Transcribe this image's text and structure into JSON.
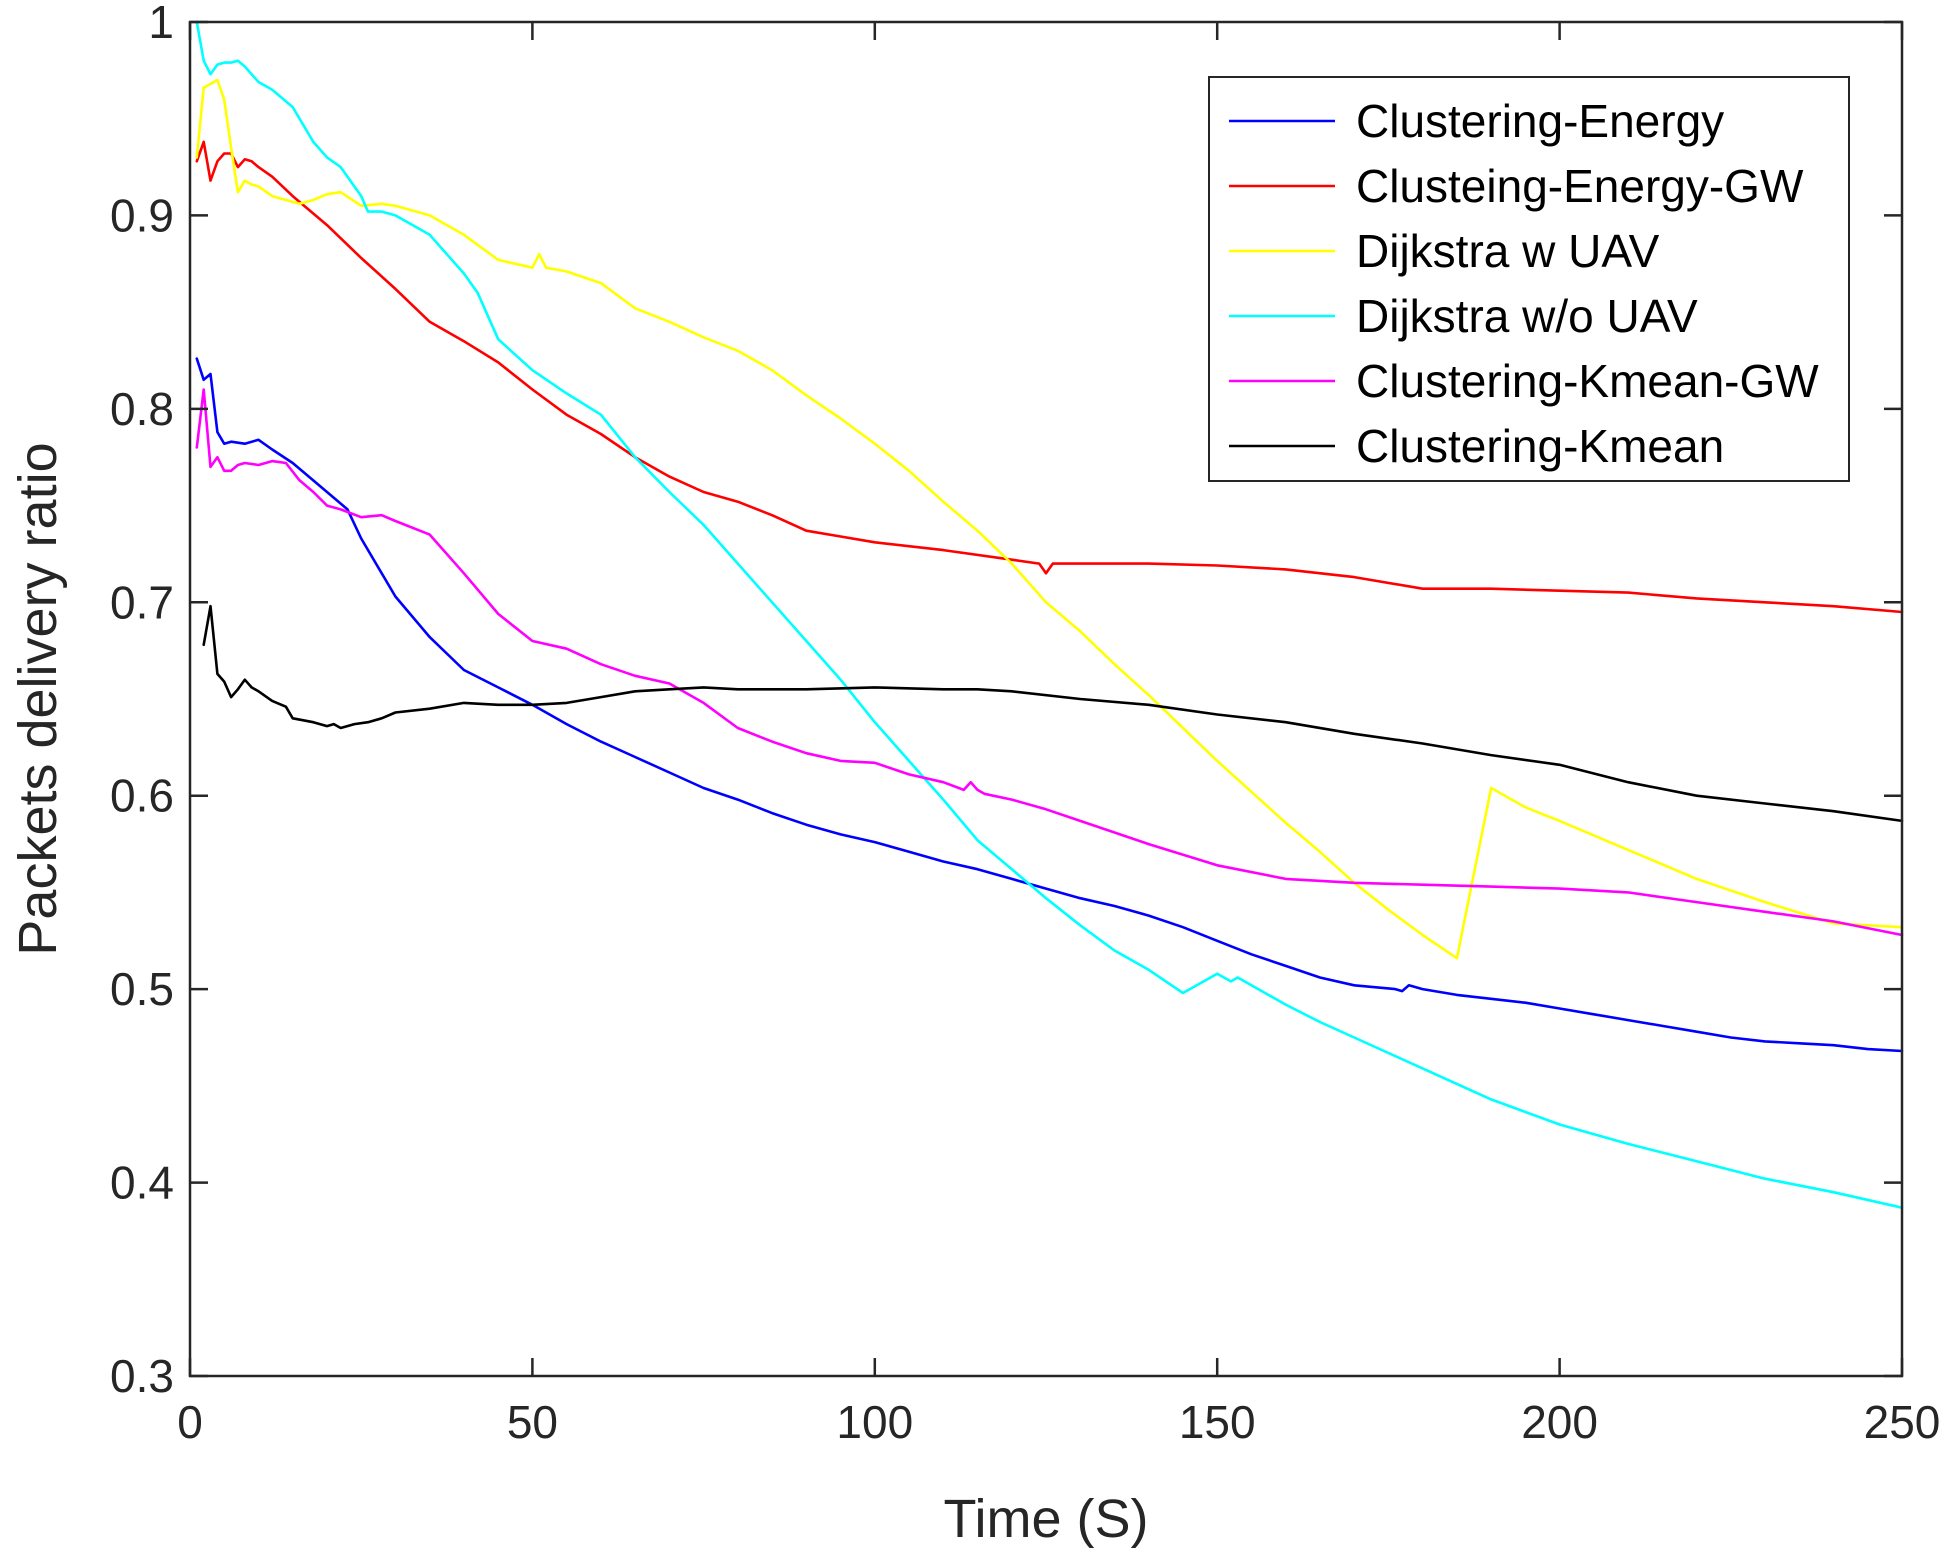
{
  "chart_data": {
    "type": "line",
    "title": "",
    "xlabel": "Time (S)",
    "ylabel": "Packets delivery ratio",
    "xlim": [
      0,
      250
    ],
    "ylim": [
      0.3,
      1
    ],
    "xticks": [
      0,
      50,
      100,
      150,
      200,
      250
    ],
    "yticks": [
      0.3,
      0.4,
      0.5,
      0.6,
      0.7,
      0.8,
      0.9,
      1
    ],
    "xtick_labels": [
      "0",
      "50",
      "100",
      "150",
      "200",
      "250"
    ],
    "ytick_labels": [
      "0.3",
      "0.4",
      "0.5",
      "0.6",
      "0.7",
      "0.8",
      "0.9",
      "1"
    ],
    "grid": false,
    "legend_position": "top-right",
    "series": [
      {
        "name": "Clustering-Energy",
        "color": "#0000ff",
        "x": [
          1,
          2,
          3,
          4,
          5,
          6,
          8,
          10,
          12,
          15,
          20,
          23,
          25,
          30,
          35,
          40,
          45,
          50,
          55,
          60,
          65,
          70,
          75,
          80,
          85,
          90,
          95,
          100,
          105,
          110,
          115,
          120,
          125,
          130,
          135,
          140,
          145,
          150,
          155,
          160,
          165,
          170,
          176,
          177,
          178,
          180,
          185,
          190,
          195,
          200,
          205,
          210,
          215,
          220,
          225,
          230,
          235,
          240,
          245,
          250
        ],
        "y": [
          0.826,
          0.815,
          0.818,
          0.788,
          0.782,
          0.783,
          0.782,
          0.784,
          0.779,
          0.772,
          0.757,
          0.748,
          0.733,
          0.703,
          0.682,
          0.665,
          0.656,
          0.647,
          0.637,
          0.628,
          0.62,
          0.612,
          0.604,
          0.598,
          0.591,
          0.585,
          0.58,
          0.576,
          0.571,
          0.566,
          0.562,
          0.557,
          0.552,
          0.547,
          0.543,
          0.538,
          0.532,
          0.525,
          0.518,
          0.512,
          0.506,
          0.502,
          0.5,
          0.499,
          0.502,
          0.5,
          0.497,
          0.495,
          0.493,
          0.49,
          0.487,
          0.484,
          0.481,
          0.478,
          0.475,
          0.473,
          0.472,
          0.471,
          0.469,
          0.468
        ]
      },
      {
        "name": "Clusteing-Energy-GW",
        "color": "#ff0000",
        "x": [
          1,
          2,
          3,
          4,
          5,
          6,
          7,
          8,
          9,
          10,
          12,
          15,
          20,
          25,
          30,
          35,
          40,
          45,
          50,
          55,
          60,
          65,
          70,
          75,
          80,
          85,
          90,
          95,
          100,
          110,
          120,
          124,
          125,
          126,
          130,
          140,
          150,
          160,
          170,
          180,
          190,
          200,
          210,
          220,
          230,
          240,
          250
        ],
        "y": [
          0.928,
          0.938,
          0.918,
          0.928,
          0.932,
          0.932,
          0.925,
          0.929,
          0.928,
          0.925,
          0.92,
          0.91,
          0.895,
          0.878,
          0.862,
          0.845,
          0.835,
          0.824,
          0.81,
          0.797,
          0.787,
          0.775,
          0.765,
          0.757,
          0.752,
          0.745,
          0.737,
          0.734,
          0.731,
          0.727,
          0.722,
          0.72,
          0.715,
          0.72,
          0.72,
          0.72,
          0.719,
          0.717,
          0.713,
          0.707,
          0.707,
          0.706,
          0.705,
          0.702,
          0.7,
          0.698,
          0.695
        ]
      },
      {
        "name": "Dijkstra w UAV",
        "color": "#ffff00",
        "x": [
          1,
          2,
          3,
          4,
          5,
          6,
          7,
          8,
          9,
          10,
          12,
          14,
          16,
          18,
          20,
          22,
          25,
          28,
          30,
          35,
          40,
          45,
          50,
          51,
          52,
          55,
          60,
          65,
          70,
          75,
          80,
          85,
          90,
          95,
          100,
          105,
          110,
          115,
          120,
          125,
          130,
          135,
          140,
          145,
          150,
          155,
          160,
          165,
          170,
          175,
          180,
          185,
          190,
          195,
          200,
          210,
          220,
          230,
          240,
          250
        ],
        "y": [
          0.93,
          0.966,
          0.968,
          0.97,
          0.96,
          0.935,
          0.912,
          0.918,
          0.916,
          0.915,
          0.91,
          0.908,
          0.906,
          0.908,
          0.911,
          0.912,
          0.905,
          0.906,
          0.905,
          0.9,
          0.89,
          0.877,
          0.873,
          0.88,
          0.873,
          0.871,
          0.865,
          0.852,
          0.845,
          0.837,
          0.83,
          0.82,
          0.807,
          0.795,
          0.782,
          0.768,
          0.752,
          0.737,
          0.72,
          0.7,
          0.685,
          0.668,
          0.652,
          0.635,
          0.618,
          0.602,
          0.586,
          0.571,
          0.555,
          0.541,
          0.528,
          0.516,
          0.604,
          0.594,
          0.587,
          0.572,
          0.557,
          0.545,
          0.534,
          0.532
        ]
      },
      {
        "name": "Dijkstra w/o UAV",
        "color": "#00ffff",
        "x": [
          1,
          2,
          3,
          4,
          5,
          6,
          7,
          8,
          10,
          12,
          15,
          18,
          20,
          22,
          25,
          26,
          27,
          28,
          30,
          35,
          40,
          42,
          45,
          50,
          55,
          60,
          65,
          70,
          75,
          80,
          85,
          90,
          95,
          100,
          105,
          110,
          115,
          120,
          125,
          130,
          135,
          140,
          145,
          150,
          152,
          153,
          155,
          160,
          165,
          170,
          175,
          180,
          190,
          200,
          210,
          220,
          230,
          240,
          250
        ],
        "y": [
          1.0,
          0.98,
          0.973,
          0.978,
          0.979,
          0.979,
          0.98,
          0.977,
          0.969,
          0.965,
          0.956,
          0.938,
          0.93,
          0.925,
          0.91,
          0.902,
          0.902,
          0.902,
          0.9,
          0.89,
          0.87,
          0.86,
          0.836,
          0.82,
          0.808,
          0.797,
          0.775,
          0.757,
          0.74,
          0.72,
          0.7,
          0.68,
          0.66,
          0.638,
          0.618,
          0.598,
          0.577,
          0.562,
          0.547,
          0.533,
          0.52,
          0.51,
          0.498,
          0.508,
          0.504,
          0.506,
          0.502,
          0.492,
          0.483,
          0.475,
          0.467,
          0.459,
          0.443,
          0.43,
          0.42,
          0.411,
          0.402,
          0.395,
          0.387
        ]
      },
      {
        "name": "Clustering-Kmean-GW",
        "color": "#ff00ff",
        "x": [
          1,
          2,
          3,
          4,
          5,
          6,
          7,
          8,
          10,
          12,
          14,
          16,
          18,
          20,
          22,
          25,
          28,
          30,
          35,
          40,
          45,
          50,
          55,
          60,
          65,
          70,
          75,
          80,
          85,
          90,
          95,
          100,
          105,
          110,
          113,
          114,
          115,
          116,
          120,
          125,
          130,
          140,
          150,
          160,
          170,
          180,
          190,
          200,
          210,
          220,
          230,
          240,
          250
        ],
        "y": [
          0.78,
          0.81,
          0.77,
          0.775,
          0.768,
          0.768,
          0.771,
          0.772,
          0.771,
          0.773,
          0.772,
          0.763,
          0.757,
          0.75,
          0.748,
          0.744,
          0.745,
          0.742,
          0.735,
          0.715,
          0.694,
          0.68,
          0.676,
          0.668,
          0.662,
          0.658,
          0.648,
          0.635,
          0.628,
          0.622,
          0.618,
          0.617,
          0.611,
          0.607,
          0.603,
          0.607,
          0.603,
          0.601,
          0.598,
          0.593,
          0.587,
          0.575,
          0.564,
          0.557,
          0.555,
          0.554,
          0.553,
          0.552,
          0.55,
          0.545,
          0.54,
          0.535,
          0.528
        ]
      },
      {
        "name": "Clustering-Kmean",
        "color": "#000000",
        "x": [
          2,
          3,
          4,
          5,
          6,
          7,
          8,
          9,
          10,
          12,
          14,
          15,
          18,
          20,
          21,
          22,
          24,
          26,
          28,
          30,
          35,
          40,
          45,
          50,
          55,
          60,
          65,
          70,
          75,
          80,
          90,
          100,
          110,
          115,
          120,
          130,
          140,
          150,
          160,
          170,
          180,
          190,
          200,
          210,
          220,
          230,
          240,
          250
        ],
        "y": [
          0.678,
          0.698,
          0.663,
          0.659,
          0.651,
          0.655,
          0.66,
          0.656,
          0.654,
          0.649,
          0.646,
          0.64,
          0.638,
          0.636,
          0.637,
          0.635,
          0.637,
          0.638,
          0.64,
          0.643,
          0.645,
          0.648,
          0.647,
          0.647,
          0.648,
          0.651,
          0.654,
          0.655,
          0.656,
          0.655,
          0.655,
          0.656,
          0.655,
          0.655,
          0.654,
          0.65,
          0.647,
          0.642,
          0.638,
          0.632,
          0.627,
          0.621,
          0.616,
          0.607,
          0.6,
          0.596,
          0.592,
          0.587
        ]
      }
    ]
  }
}
